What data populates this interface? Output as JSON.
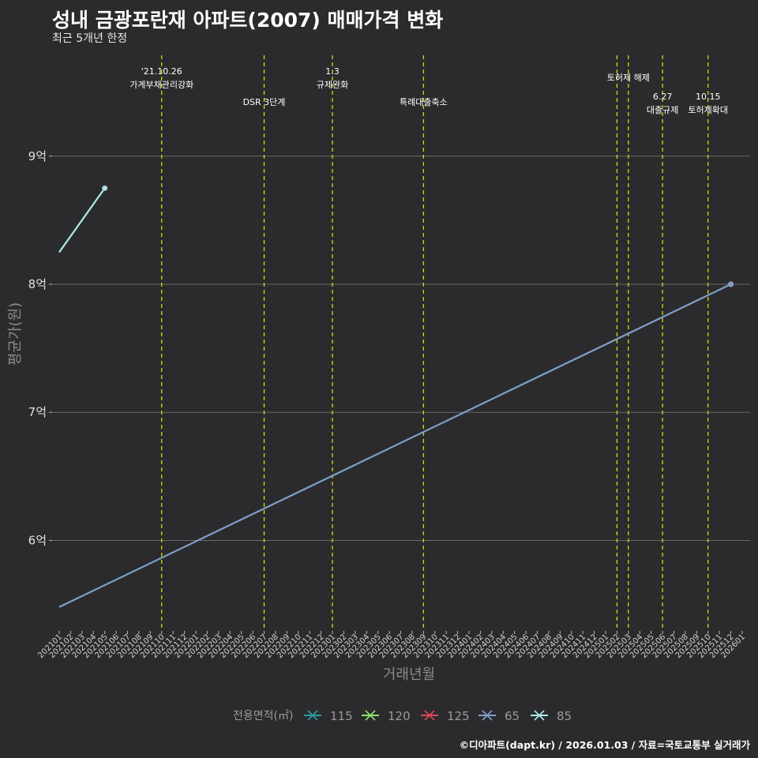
{
  "title": "성내 금광포란재 아파트(2007) 매매가격 변화",
  "subtitle": "최근 5개년 한정",
  "caption": "©디아파트(dapt.kr) / 2026.01.03 / 자료=국토교통부 실거래가",
  "colors": {
    "background": "#2b2b2d",
    "grid": "#6a6a6a",
    "event_line": "#e6e600",
    "s115": "#2a9d9d",
    "s120": "#8ee06a",
    "s125": "#e0475a",
    "s65": "#7f9fc8",
    "s85": "#aee9e6"
  },
  "chart_data": {
    "type": "line",
    "title": "성내 금광포란재 아파트(2007) 매매가격 변화",
    "subtitle": "최근 5개년 한정",
    "xlabel": "거래년월",
    "ylabel": "평균가(원)",
    "ylim": [
      5.3,
      9.8
    ],
    "yticks": [
      6,
      7,
      8,
      9
    ],
    "ytick_labels": [
      "6억",
      "7억",
      "8억",
      "9억"
    ],
    "x_categories": [
      "202101",
      "202102",
      "202103",
      "202104",
      "202105",
      "202106",
      "202107",
      "202108",
      "202109",
      "202110",
      "202111",
      "202112",
      "202201",
      "202202",
      "202203",
      "202204",
      "202205",
      "202206",
      "202207",
      "202208",
      "202209",
      "202210",
      "202211",
      "202212",
      "202301",
      "202302",
      "202303",
      "202304",
      "202305",
      "202306",
      "202307",
      "202308",
      "202309",
      "202310",
      "202311",
      "202312",
      "202401",
      "202402",
      "202403",
      "202404",
      "202405",
      "202406",
      "202407",
      "202408",
      "202409",
      "202410",
      "202411",
      "202412",
      "202501",
      "202502",
      "202503",
      "202504",
      "202505",
      "202506",
      "202507",
      "202508",
      "202509",
      "202510",
      "202511",
      "202512",
      "202601"
    ],
    "legend_title": "전용면적(㎡)",
    "legend": [
      "115",
      "120",
      "125",
      "65",
      "85"
    ],
    "series": [
      {
        "name": "65",
        "color_key": "s65",
        "points": [
          {
            "x": "202101",
            "y": 5.48,
            "marker": false
          },
          {
            "x": "202512",
            "y": 8.0,
            "marker": true
          }
        ]
      },
      {
        "name": "85",
        "color_key": "s85",
        "points": [
          {
            "x": "202101",
            "y": 8.25,
            "marker": false
          },
          {
            "x": "202105",
            "y": 8.75,
            "marker": true
          }
        ]
      }
    ],
    "events": [
      {
        "x": "202110",
        "lines": [
          "'21.10.26",
          "가계부채관리강화"
        ],
        "row": 0
      },
      {
        "x": "202207",
        "lines": [
          "DSR 3단계"
        ],
        "row": 2
      },
      {
        "x": "202301",
        "lines": [
          "1.3",
          "규제완화"
        ],
        "row": 0
      },
      {
        "x": "202309",
        "lines": [
          "특례대출축소"
        ],
        "row": 2
      },
      {
        "x": "202502",
        "lines": [],
        "row": 1
      },
      {
        "x": "202503",
        "lines": [
          "토허제 해제"
        ],
        "row": 1
      },
      {
        "x": "202506",
        "lines": [
          "6.27",
          "대출규제"
        ],
        "row": 2
      },
      {
        "x": "202510",
        "lines": [
          "10.15",
          "토허제확대"
        ],
        "row": 2
      }
    ]
  }
}
